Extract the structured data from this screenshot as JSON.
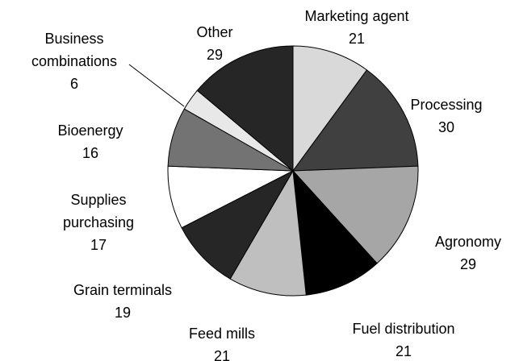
{
  "chart_data": {
    "type": "pie",
    "categories": [
      "Marketing agent",
      "Processing",
      "Agronomy",
      "Fuel distribution",
      "Feed mills",
      "Grain terminals",
      "Supplies purchasing",
      "Bioenergy",
      "Business combinations",
      "Other"
    ],
    "values": [
      21,
      30,
      29,
      21,
      21,
      19,
      17,
      16,
      6,
      29
    ],
    "colors": [
      "#d9d9d9",
      "#404040",
      "#a6a6a6",
      "#000000",
      "#bfbfbf",
      "#262626",
      "#ffffff",
      "#737373",
      "#e8e8e8",
      "#262626"
    ]
  }
}
